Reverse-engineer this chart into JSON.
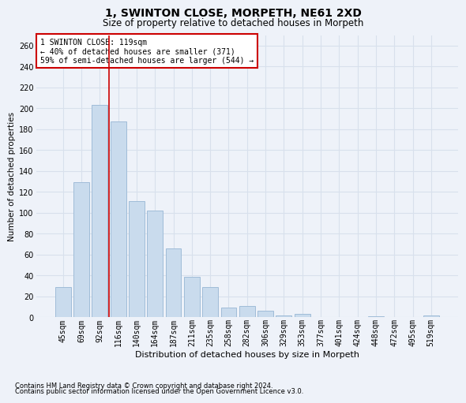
{
  "title_line1": "1, SWINTON CLOSE, MORPETH, NE61 2XD",
  "title_line2": "Size of property relative to detached houses in Morpeth",
  "xlabel": "Distribution of detached houses by size in Morpeth",
  "ylabel": "Number of detached properties",
  "footnote1": "Contains HM Land Registry data © Crown copyright and database right 2024.",
  "footnote2": "Contains public sector information licensed under the Open Government Licence v3.0.",
  "categories": [
    "45sqm",
    "69sqm",
    "92sqm",
    "116sqm",
    "140sqm",
    "164sqm",
    "187sqm",
    "211sqm",
    "235sqm",
    "258sqm",
    "282sqm",
    "306sqm",
    "329sqm",
    "353sqm",
    "377sqm",
    "401sqm",
    "424sqm",
    "448sqm",
    "472sqm",
    "495sqm",
    "519sqm"
  ],
  "values": [
    29,
    129,
    203,
    187,
    111,
    102,
    66,
    39,
    29,
    9,
    11,
    6,
    2,
    3,
    0,
    0,
    0,
    1,
    0,
    0,
    2
  ],
  "bar_color": "#c9dbed",
  "bar_edge_color": "#a0bcd8",
  "grid_color": "#d8e0ec",
  "annotation_text": "1 SWINTON CLOSE: 119sqm\n← 40% of detached houses are smaller (371)\n59% of semi-detached houses are larger (544) →",
  "annotation_box_color": "#ffffff",
  "annotation_box_edge": "#cc0000",
  "vline_x_index": 2.5,
  "vline_color": "#cc0000",
  "ylim": [
    0,
    270
  ],
  "yticks": [
    0,
    20,
    40,
    60,
    80,
    100,
    120,
    140,
    160,
    180,
    200,
    220,
    240,
    260
  ],
  "bg_color": "#eef2f9",
  "plot_bg_color": "#eef2f9",
  "title_fontsize": 10,
  "subtitle_fontsize": 8.5,
  "ylabel_fontsize": 7.5,
  "xlabel_fontsize": 8,
  "tick_fontsize": 7,
  "annot_fontsize": 7,
  "footnote_fontsize": 6
}
